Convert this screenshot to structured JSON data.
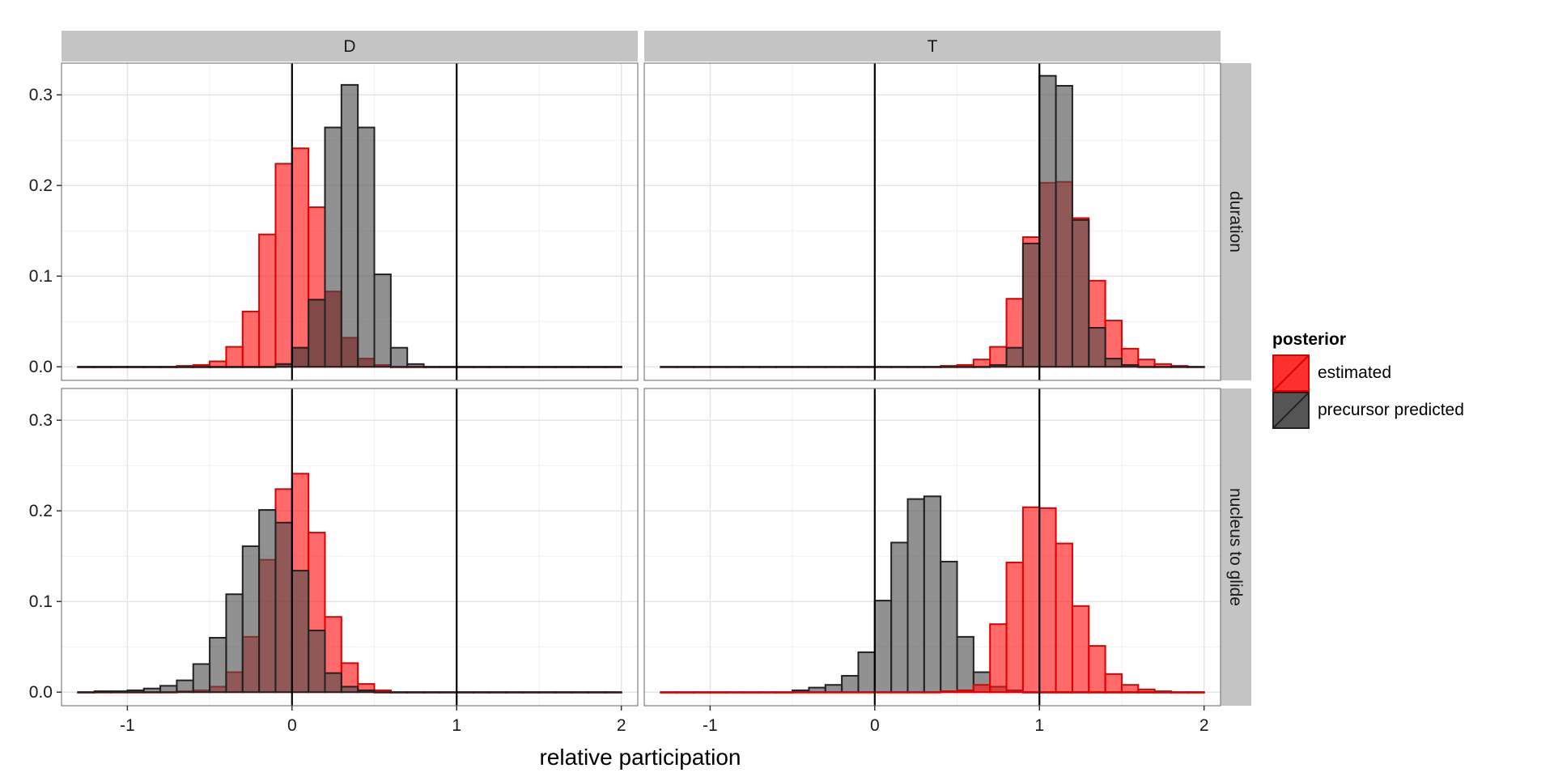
{
  "chart_data": {
    "type": "bar",
    "xlabel": "relative participation",
    "ylabel": "",
    "xlim": [
      -1.4,
      2.1
    ],
    "ylim": [
      -0.015,
      0.335
    ],
    "x_ticks": [
      -1,
      0,
      1,
      2
    ],
    "x_tick_labels": [
      "-1",
      "0",
      "1",
      "2"
    ],
    "y_ticks": [
      0.0,
      0.1,
      0.2,
      0.3
    ],
    "y_tick_labels": [
      "0.0",
      "0.1",
      "0.2",
      "0.3"
    ],
    "grid": true,
    "legend": {
      "title": "posterior",
      "placement": "right",
      "entries": [
        "estimated",
        "precursor predicted"
      ]
    },
    "colors": {
      "estimated_fill": "#ff1a1a",
      "estimated_line": "#e00000",
      "predicted_fill": "#4d4d4d",
      "predicted_line": "#222222",
      "strip": "#c4c4c4",
      "panel_bg": "#ffffff",
      "grid_major": "#e3e3e3",
      "grid_minor": "#f1f1f1"
    },
    "bin_centers": [
      -1.25,
      -1.15,
      -1.05,
      -0.95,
      -0.85,
      -0.75,
      -0.65,
      -0.55,
      -0.45,
      -0.35,
      -0.25,
      -0.15,
      -0.05,
      0.05,
      0.15,
      0.25,
      0.35,
      0.45,
      0.55,
      0.65,
      0.75,
      0.85,
      0.95,
      1.05,
      1.15,
      1.25,
      1.35,
      1.45,
      1.55,
      1.65,
      1.75,
      1.85,
      1.95
    ],
    "col_facets": [
      "D",
      "T"
    ],
    "row_facets": [
      "duration",
      "nucleus to glide"
    ],
    "panels": [
      {
        "col": "D",
        "row": "duration",
        "vlines": [
          0,
          1
        ],
        "series": [
          {
            "name": "precursor predicted",
            "values": [
              0,
              0,
              0,
              0,
              0,
              0,
              0,
              0,
              0,
              0,
              0,
              0,
              0.003,
              0.021,
              0.074,
              0.083,
              0.032,
              0.009,
              0.002,
              0,
              0,
              0,
              0,
              0,
              0,
              0,
              0,
              0,
              0,
              0,
              0,
              0,
              0
            ]
          },
          {
            "name": "estimated",
            "values": [
              0,
              0,
              0,
              0,
              0,
              0,
              0.001,
              0.002,
              0.006,
              0.022,
              0.061,
              0.146,
              0.224,
              0.241,
              0.176,
              0.083,
              0.032,
              0.009,
              0.002,
              0,
              0,
              0,
              0,
              0,
              0,
              0,
              0,
              0,
              0,
              0,
              0,
              0,
              0
            ]
          },
          {
            "name": "precursor predicted",
            "values": [
              0,
              0,
              0,
              0,
              0,
              0,
              0,
              0,
              0,
              0,
              0,
              0,
              0.003,
              0.021,
              0.074,
              0.264,
              0.311,
              0.264,
              0.102,
              0.021,
              0.003,
              0,
              0,
              0,
              0,
              0,
              0,
              0,
              0,
              0,
              0,
              0,
              0
            ]
          }
        ]
      },
      {
        "col": "T",
        "row": "duration",
        "vlines": [
          0,
          1
        ],
        "series": [
          {
            "name": "estimated",
            "values": [
              0,
              0,
              0,
              0,
              0,
              0,
              0,
              0,
              0,
              0,
              0,
              0,
              0,
              0,
              0,
              0,
              0,
              0.001,
              0.002,
              0.008,
              0.022,
              0.075,
              0.143,
              0.203,
              0.204,
              0.164,
              0.095,
              0.051,
              0.02,
              0.008,
              0.003,
              0.001,
              0
            ]
          },
          {
            "name": "precursor predicted",
            "values": [
              0,
              0,
              0,
              0,
              0,
              0,
              0,
              0,
              0,
              0,
              0,
              0,
              0,
              0,
              0,
              0,
              0,
              0,
              0,
              0,
              0.002,
              0.021,
              0.136,
              0.321,
              0.31,
              0.162,
              0.043,
              0.009,
              0.002,
              0,
              0,
              0,
              0
            ]
          }
        ]
      },
      {
        "col": "D",
        "row": "nucleus to glide",
        "vlines": [
          0,
          1
        ],
        "series": [
          {
            "name": "estimated",
            "values": [
              0,
              0,
              0,
              0,
              0,
              0,
              0.001,
              0.002,
              0.006,
              0.022,
              0.061,
              0.146,
              0.224,
              0.241,
              0.176,
              0.083,
              0.032,
              0.009,
              0.002,
              0,
              0,
              0,
              0,
              0,
              0,
              0,
              0,
              0,
              0,
              0,
              0,
              0,
              0
            ]
          },
          {
            "name": "precursor predicted",
            "values": [
              0,
              0.001,
              0.001,
              0.002,
              0.004,
              0.007,
              0.013,
              0.031,
              0.06,
              0.108,
              0.161,
              0.201,
              0.187,
              0.134,
              0.068,
              0.021,
              0.006,
              0.002,
              0,
              0,
              0,
              0,
              0,
              0,
              0,
              0,
              0,
              0,
              0,
              0,
              0,
              0,
              0
            ]
          }
        ]
      },
      {
        "col": "T",
        "row": "nucleus to glide",
        "vlines": [
          0,
          1
        ],
        "series": [
          {
            "name": "precursor predicted",
            "values": [
              0,
              0,
              0,
              0,
              0,
              0,
              0,
              0,
              0.002,
              0.005,
              0.008,
              0.018,
              0.044,
              0.101,
              0.165,
              0.213,
              0.216,
              0.144,
              0.061,
              0.022,
              0.006,
              0.002,
              0,
              0,
              0,
              0,
              0,
              0,
              0,
              0,
              0,
              0,
              0
            ]
          },
          {
            "name": "estimated",
            "values": [
              0,
              0,
              0,
              0,
              0,
              0,
              0,
              0,
              0,
              0,
              0,
              0,
              0,
              0,
              0,
              0,
              0,
              0.001,
              0.002,
              0.008,
              0.075,
              0.143,
              0.204,
              0.203,
              0.164,
              0.095,
              0.051,
              0.02,
              0.008,
              0.003,
              0.001,
              0,
              0
            ]
          }
        ]
      }
    ]
  }
}
